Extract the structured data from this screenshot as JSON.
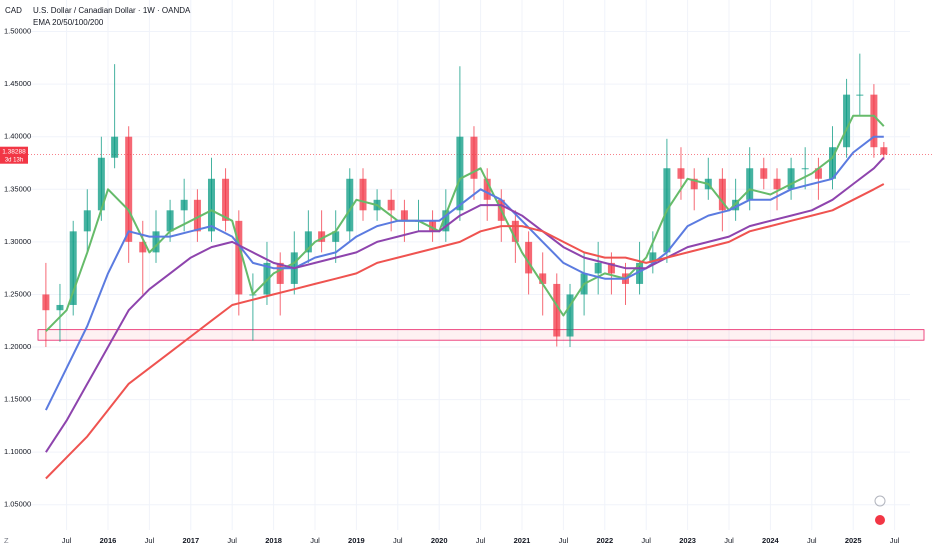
{
  "chart_data": {
    "type": "candlestick",
    "title": "U.S. Dollar / Canadian Dollar · 1W · OANDA",
    "subtitle": "EMA 20/50/100/200",
    "currency": "CAD",
    "xlim": [
      2015.034,
      2025.686
    ],
    "ylim": [
      1.026,
      1.53
    ],
    "xticks": [
      {
        "value": 2015.5,
        "label": "Jul"
      },
      2016,
      {
        "value": 2016.5,
        "label": "Jul"
      },
      2017,
      {
        "value": 2017.5,
        "label": "Jul"
      },
      2018,
      {
        "value": 2018.5,
        "label": "Jul"
      },
      2019,
      {
        "value": 2019.5,
        "label": "Jul"
      },
      2020,
      {
        "value": 2020.5,
        "label": "Jul"
      },
      2021,
      {
        "value": 2021.5,
        "label": "Jul"
      },
      2022,
      {
        "value": 2022.5,
        "label": "Jul"
      },
      2023,
      {
        "value": 2023.5,
        "label": "Jul"
      },
      2024,
      {
        "value": 2024.5,
        "label": "Jul"
      },
      2025,
      {
        "value": 2025.5,
        "label": "Jul"
      }
    ],
    "yticks": [
      {
        "value": 1.05,
        "label": "1.05000"
      },
      {
        "value": 1.1,
        "label": "1.10000"
      },
      {
        "value": 1.15,
        "label": "1.15000"
      },
      {
        "value": 1.2,
        "label": "1.20000"
      },
      {
        "value": 1.25,
        "label": "1.25000"
      },
      {
        "value": 1.3,
        "label": "1.30000"
      },
      {
        "value": 1.35,
        "label": "1.35000"
      },
      {
        "value": 1.4,
        "label": "1.40000"
      },
      {
        "value": 1.45,
        "label": "1.45000"
      },
      {
        "value": 1.5,
        "label": "1.50000"
      }
    ],
    "up_color": "#089981",
    "down_color": "#f23645",
    "candles": {
      "x": [
        2015.25,
        2015.42,
        2015.58,
        2015.75,
        2015.92,
        2016.08,
        2016.25,
        2016.42,
        2016.58,
        2016.75,
        2016.92,
        2017.08,
        2017.25,
        2017.42,
        2017.58,
        2017.75,
        2017.92,
        2018.08,
        2018.25,
        2018.42,
        2018.58,
        2018.75,
        2018.92,
        2019.08,
        2019.25,
        2019.42,
        2019.58,
        2019.75,
        2019.92,
        2020.08,
        2020.25,
        2020.42,
        2020.58,
        2020.75,
        2020.92,
        2021.08,
        2021.25,
        2021.42,
        2021.58,
        2021.75,
        2021.92,
        2022.08,
        2022.25,
        2022.42,
        2022.58,
        2022.75,
        2022.92,
        2023.08,
        2023.25,
        2023.42,
        2023.58,
        2023.75,
        2023.92,
        2024.08,
        2024.25,
        2024.42,
        2024.58,
        2024.75,
        2024.92,
        2025.08,
        2025.25,
        2025.37
      ],
      "open": [
        1.25,
        1.235,
        1.24,
        1.31,
        1.33,
        1.38,
        1.4,
        1.3,
        1.29,
        1.31,
        1.33,
        1.34,
        1.31,
        1.36,
        1.32,
        1.25,
        1.25,
        1.28,
        1.26,
        1.29,
        1.31,
        1.3,
        1.31,
        1.36,
        1.33,
        1.34,
        1.33,
        1.32,
        1.32,
        1.31,
        1.33,
        1.4,
        1.36,
        1.34,
        1.32,
        1.3,
        1.27,
        1.26,
        1.21,
        1.25,
        1.27,
        1.28,
        1.27,
        1.26,
        1.28,
        1.29,
        1.37,
        1.36,
        1.35,
        1.36,
        1.33,
        1.34,
        1.37,
        1.36,
        1.35,
        1.37,
        1.37,
        1.36,
        1.39,
        1.44,
        1.44,
        1.39
      ],
      "high": [
        1.28,
        1.26,
        1.32,
        1.35,
        1.4,
        1.469,
        1.41,
        1.32,
        1.33,
        1.34,
        1.36,
        1.35,
        1.38,
        1.37,
        1.33,
        1.27,
        1.3,
        1.29,
        1.31,
        1.33,
        1.33,
        1.33,
        1.37,
        1.37,
        1.35,
        1.35,
        1.34,
        1.34,
        1.33,
        1.35,
        1.467,
        1.41,
        1.37,
        1.35,
        1.33,
        1.31,
        1.29,
        1.27,
        1.26,
        1.29,
        1.3,
        1.29,
        1.28,
        1.3,
        1.31,
        1.398,
        1.39,
        1.37,
        1.38,
        1.37,
        1.36,
        1.39,
        1.38,
        1.37,
        1.38,
        1.39,
        1.38,
        1.41,
        1.455,
        1.479,
        1.45,
        1.395
      ],
      "low": [
        1.2,
        1.205,
        1.23,
        1.29,
        1.32,
        1.37,
        1.28,
        1.25,
        1.28,
        1.3,
        1.31,
        1.3,
        1.3,
        1.31,
        1.23,
        1.206,
        1.24,
        1.23,
        1.25,
        1.28,
        1.29,
        1.28,
        1.3,
        1.32,
        1.32,
        1.31,
        1.3,
        1.31,
        1.3,
        1.3,
        1.32,
        1.34,
        1.32,
        1.3,
        1.28,
        1.25,
        1.23,
        1.2005,
        1.2,
        1.23,
        1.25,
        1.25,
        1.24,
        1.25,
        1.27,
        1.28,
        1.34,
        1.33,
        1.34,
        1.31,
        1.32,
        1.33,
        1.35,
        1.33,
        1.34,
        1.35,
        1.34,
        1.35,
        1.38,
        1.42,
        1.38,
        1.378
      ],
      "close": [
        1.235,
        1.24,
        1.31,
        1.33,
        1.38,
        1.4,
        1.3,
        1.29,
        1.31,
        1.33,
        1.34,
        1.31,
        1.36,
        1.32,
        1.25,
        1.25,
        1.28,
        1.26,
        1.29,
        1.31,
        1.3,
        1.31,
        1.36,
        1.33,
        1.34,
        1.33,
        1.32,
        1.32,
        1.31,
        1.33,
        1.4,
        1.36,
        1.34,
        1.32,
        1.3,
        1.27,
        1.26,
        1.21,
        1.25,
        1.27,
        1.28,
        1.27,
        1.26,
        1.28,
        1.29,
        1.37,
        1.36,
        1.35,
        1.36,
        1.33,
        1.34,
        1.37,
        1.36,
        1.35,
        1.37,
        1.37,
        1.36,
        1.39,
        1.44,
        1.44,
        1.39,
        1.383
      ]
    },
    "ema_x": [
      2015.25,
      2015.5,
      2015.75,
      2016,
      2016.25,
      2016.5,
      2016.75,
      2017,
      2017.25,
      2017.5,
      2017.75,
      2018,
      2018.25,
      2018.5,
      2018.75,
      2019,
      2019.25,
      2019.5,
      2019.75,
      2020,
      2020.25,
      2020.5,
      2020.75,
      2021,
      2021.25,
      2021.5,
      2021.75,
      2022,
      2022.25,
      2022.5,
      2022.75,
      2023,
      2023.25,
      2023.5,
      2023.75,
      2024,
      2024.25,
      2024.5,
      2024.75,
      2025,
      2025.25,
      2025.37
    ],
    "series": [
      {
        "color": "#66bb6a",
        "values": [
          1.215,
          1.235,
          1.29,
          1.35,
          1.33,
          1.29,
          1.31,
          1.32,
          1.33,
          1.32,
          1.25,
          1.27,
          1.28,
          1.3,
          1.31,
          1.34,
          1.335,
          1.32,
          1.32,
          1.31,
          1.36,
          1.37,
          1.33,
          1.29,
          1.26,
          1.23,
          1.26,
          1.27,
          1.265,
          1.285,
          1.33,
          1.36,
          1.355,
          1.33,
          1.35,
          1.345,
          1.355,
          1.365,
          1.38,
          1.42,
          1.42,
          1.41
        ]
      },
      {
        "color": "#5b7be0",
        "values": [
          1.14,
          1.18,
          1.22,
          1.27,
          1.31,
          1.305,
          1.305,
          1.31,
          1.315,
          1.305,
          1.28,
          1.275,
          1.275,
          1.285,
          1.29,
          1.305,
          1.315,
          1.32,
          1.32,
          1.32,
          1.335,
          1.35,
          1.34,
          1.32,
          1.3,
          1.28,
          1.27,
          1.265,
          1.265,
          1.275,
          1.29,
          1.315,
          1.325,
          1.33,
          1.34,
          1.34,
          1.35,
          1.355,
          1.36,
          1.385,
          1.4,
          1.4
        ]
      },
      {
        "color": "#8e44ad",
        "values": [
          1.1,
          1.13,
          1.165,
          1.2,
          1.235,
          1.255,
          1.27,
          1.285,
          1.295,
          1.3,
          1.29,
          1.28,
          1.275,
          1.28,
          1.285,
          1.29,
          1.3,
          1.305,
          1.31,
          1.31,
          1.325,
          1.335,
          1.335,
          1.325,
          1.31,
          1.295,
          1.285,
          1.28,
          1.275,
          1.275,
          1.285,
          1.295,
          1.3,
          1.305,
          1.315,
          1.32,
          1.325,
          1.33,
          1.34,
          1.355,
          1.37,
          1.38
        ]
      },
      {
        "color": "#ef5350",
        "values": [
          1.075,
          1.095,
          1.115,
          1.14,
          1.165,
          1.18,
          1.195,
          1.21,
          1.225,
          1.24,
          1.245,
          1.25,
          1.255,
          1.26,
          1.265,
          1.27,
          1.28,
          1.285,
          1.29,
          1.295,
          1.3,
          1.31,
          1.315,
          1.315,
          1.31,
          1.3,
          1.29,
          1.285,
          1.285,
          1.28,
          1.285,
          1.29,
          1.295,
          1.3,
          1.31,
          1.315,
          1.32,
          1.325,
          1.33,
          1.34,
          1.35,
          1.355
        ]
      }
    ],
    "zone": [
      1.2065,
      1.2165
    ],
    "last_price": {
      "value": 1.38288,
      "label": "1.38288",
      "countdown": "3d 13h"
    }
  }
}
